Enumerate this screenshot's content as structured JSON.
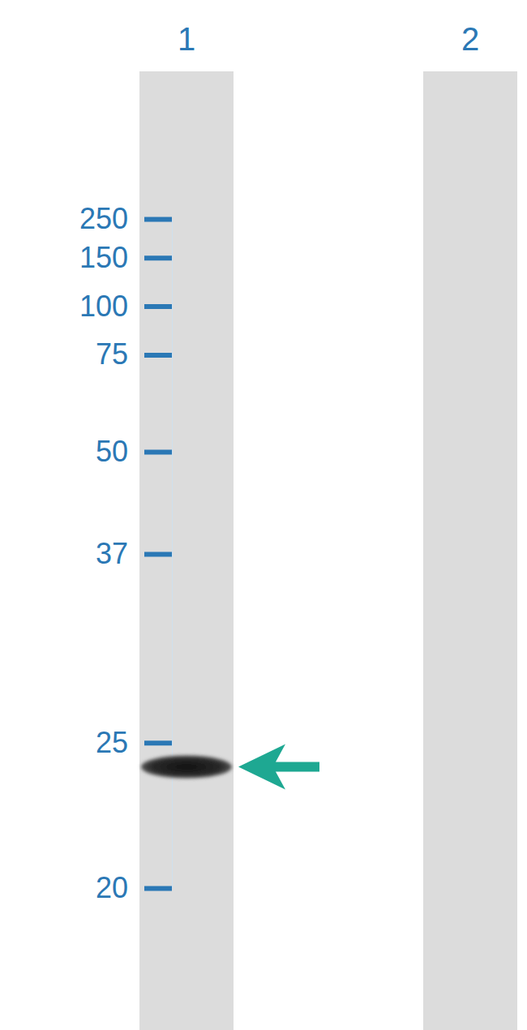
{
  "chart_data": {
    "type": "western_blot",
    "categories": [
      "1",
      "2"
    ],
    "values": [
      24,
      null
    ],
    "ylim": [
      20,
      250
    ],
    "yticks": [
      250,
      150,
      100,
      75,
      50,
      37,
      25,
      20
    ]
  }
}
